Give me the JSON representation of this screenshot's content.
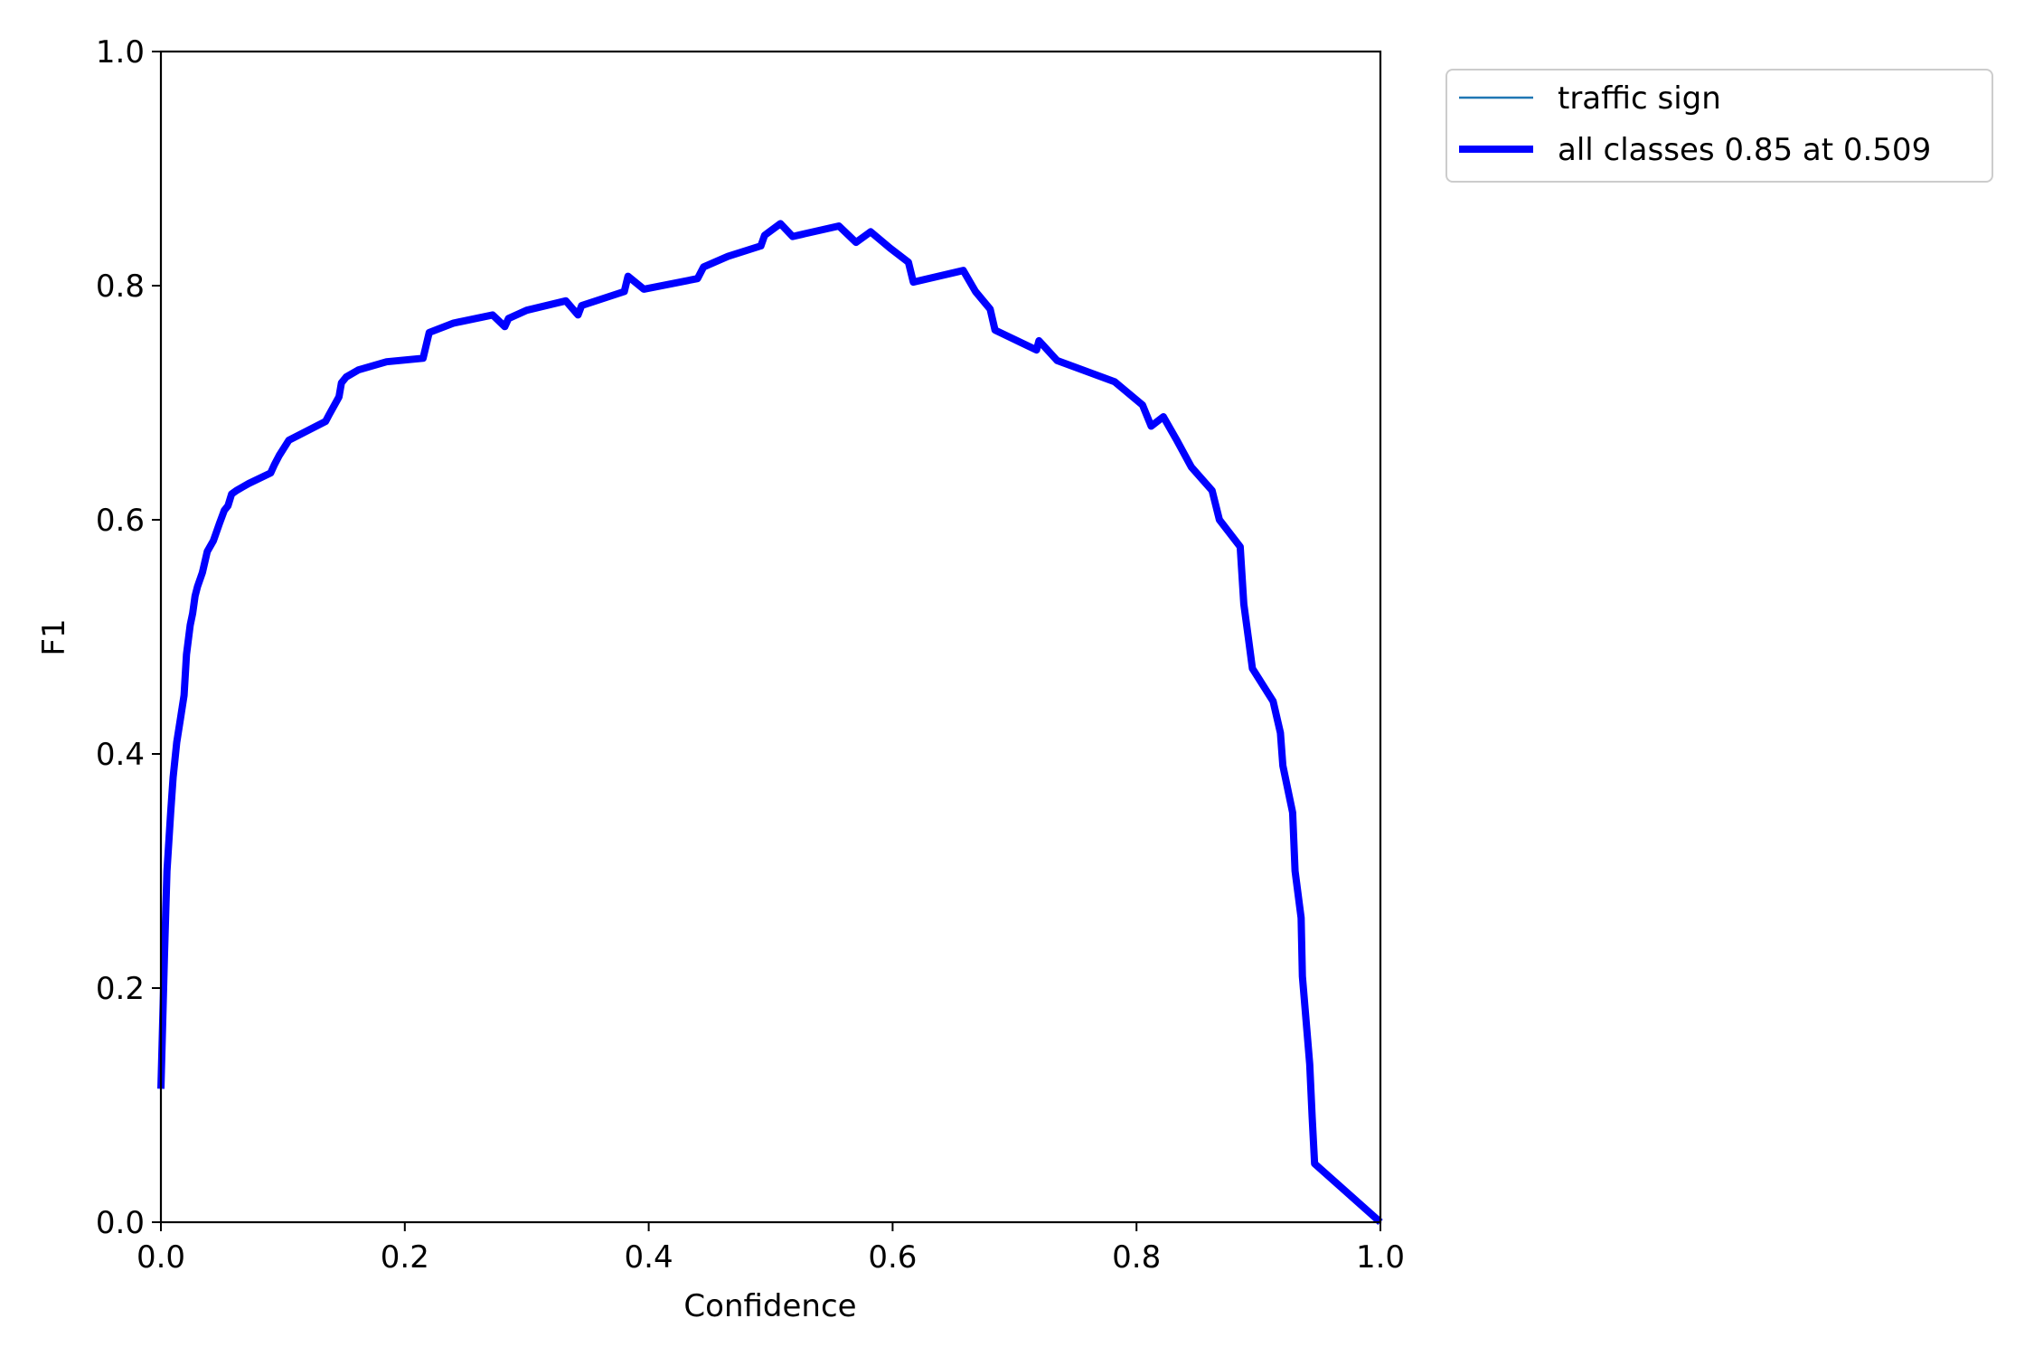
{
  "chart_data": {
    "type": "line",
    "xlabel": "Confidence",
    "ylabel": "F1",
    "xlim": [
      0.0,
      1.0
    ],
    "ylim": [
      0.0,
      1.0
    ],
    "x_ticks": [
      "0.0",
      "0.2",
      "0.4",
      "0.6",
      "0.8",
      "1.0"
    ],
    "y_ticks": [
      "0.0",
      "0.2",
      "0.4",
      "0.6",
      "0.8",
      "1.0"
    ],
    "grid": false,
    "legend_position": "outside upper right",
    "series": [
      {
        "name": "traffic sign",
        "color": "#1f77b4",
        "line_style": "thin",
        "x": [
          0.0,
          0.003,
          0.005,
          0.008,
          0.01,
          0.013,
          0.016,
          0.019,
          0.021,
          0.024,
          0.026,
          0.028,
          0.03,
          0.034,
          0.038,
          0.043,
          0.048,
          0.052,
          0.055,
          0.058,
          0.062,
          0.067,
          0.072,
          0.09,
          0.093,
          0.097,
          0.105,
          0.135,
          0.138,
          0.146,
          0.148,
          0.152,
          0.162,
          0.185,
          0.215,
          0.22,
          0.24,
          0.272,
          0.282,
          0.285,
          0.3,
          0.332,
          0.342,
          0.345,
          0.38,
          0.383,
          0.396,
          0.44,
          0.445,
          0.465,
          0.492,
          0.495,
          0.508,
          0.518,
          0.556,
          0.57,
          0.582,
          0.598,
          0.613,
          0.617,
          0.658,
          0.668,
          0.68,
          0.684,
          0.718,
          0.72,
          0.735,
          0.782,
          0.805,
          0.812,
          0.822,
          0.833,
          0.845,
          0.862,
          0.868,
          0.885,
          0.888,
          0.892,
          0.895,
          0.912,
          0.918,
          0.92,
          0.928,
          0.93,
          0.935,
          0.936,
          0.942,
          0.944,
          0.946,
          1.0
        ],
        "y": [
          0.114,
          0.23,
          0.3,
          0.35,
          0.38,
          0.41,
          0.43,
          0.45,
          0.485,
          0.51,
          0.52,
          0.535,
          0.543,
          0.555,
          0.573,
          0.582,
          0.597,
          0.608,
          0.612,
          0.622,
          0.625,
          0.628,
          0.631,
          0.64,
          0.647,
          0.655,
          0.668,
          0.684,
          0.69,
          0.705,
          0.717,
          0.722,
          0.728,
          0.735,
          0.738,
          0.76,
          0.768,
          0.775,
          0.765,
          0.772,
          0.779,
          0.787,
          0.775,
          0.783,
          0.795,
          0.808,
          0.797,
          0.806,
          0.816,
          0.825,
          0.834,
          0.843,
          0.853,
          0.842,
          0.851,
          0.837,
          0.846,
          0.832,
          0.82,
          0.803,
          0.813,
          0.795,
          0.78,
          0.762,
          0.745,
          0.753,
          0.736,
          0.718,
          0.698,
          0.68,
          0.688,
          0.668,
          0.645,
          0.625,
          0.6,
          0.577,
          0.528,
          0.497,
          0.473,
          0.445,
          0.418,
          0.39,
          0.35,
          0.3,
          0.26,
          0.21,
          0.135,
          0.09,
          0.05,
          0.0
        ]
      },
      {
        "name": "all classes 0.85 at 0.509",
        "color": "#0000ff",
        "line_style": "thick",
        "x": [
          0.0,
          0.003,
          0.005,
          0.008,
          0.01,
          0.013,
          0.016,
          0.019,
          0.021,
          0.024,
          0.026,
          0.028,
          0.03,
          0.034,
          0.038,
          0.043,
          0.048,
          0.052,
          0.055,
          0.058,
          0.062,
          0.067,
          0.072,
          0.09,
          0.093,
          0.097,
          0.105,
          0.135,
          0.138,
          0.146,
          0.148,
          0.152,
          0.162,
          0.185,
          0.215,
          0.22,
          0.24,
          0.272,
          0.282,
          0.285,
          0.3,
          0.332,
          0.342,
          0.345,
          0.38,
          0.383,
          0.396,
          0.44,
          0.445,
          0.465,
          0.492,
          0.495,
          0.508,
          0.518,
          0.556,
          0.57,
          0.582,
          0.598,
          0.613,
          0.617,
          0.658,
          0.668,
          0.68,
          0.684,
          0.718,
          0.72,
          0.735,
          0.782,
          0.805,
          0.812,
          0.822,
          0.833,
          0.845,
          0.862,
          0.868,
          0.885,
          0.888,
          0.892,
          0.895,
          0.912,
          0.918,
          0.92,
          0.928,
          0.93,
          0.935,
          0.936,
          0.942,
          0.944,
          0.946,
          1.0
        ],
        "y": [
          0.114,
          0.23,
          0.3,
          0.35,
          0.38,
          0.41,
          0.43,
          0.45,
          0.485,
          0.51,
          0.52,
          0.535,
          0.543,
          0.555,
          0.573,
          0.582,
          0.597,
          0.608,
          0.612,
          0.622,
          0.625,
          0.628,
          0.631,
          0.64,
          0.647,
          0.655,
          0.668,
          0.684,
          0.69,
          0.705,
          0.717,
          0.722,
          0.728,
          0.735,
          0.738,
          0.76,
          0.768,
          0.775,
          0.765,
          0.772,
          0.779,
          0.787,
          0.775,
          0.783,
          0.795,
          0.808,
          0.797,
          0.806,
          0.816,
          0.825,
          0.834,
          0.843,
          0.853,
          0.842,
          0.851,
          0.837,
          0.846,
          0.832,
          0.82,
          0.803,
          0.813,
          0.795,
          0.78,
          0.762,
          0.745,
          0.753,
          0.736,
          0.718,
          0.698,
          0.68,
          0.688,
          0.668,
          0.645,
          0.625,
          0.6,
          0.577,
          0.528,
          0.497,
          0.473,
          0.445,
          0.418,
          0.39,
          0.35,
          0.3,
          0.26,
          0.21,
          0.135,
          0.09,
          0.05,
          0.0
        ]
      }
    ]
  }
}
